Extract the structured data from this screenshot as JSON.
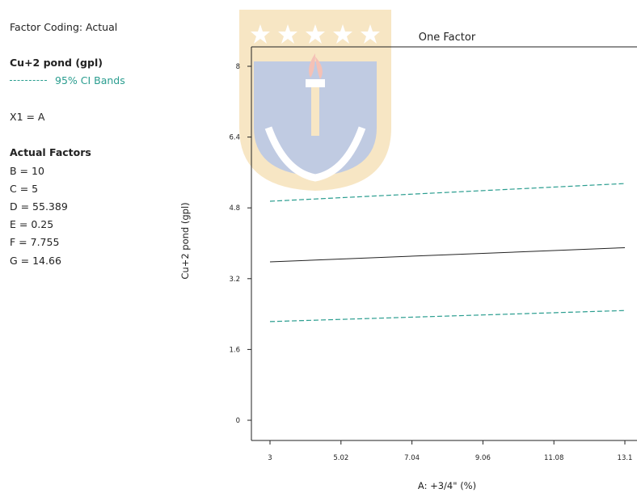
{
  "legend_panel": {
    "factor_coding": "Factor Coding: Actual",
    "response_name": "Cu+2 pond (gpl)",
    "ci_label": "95% CI Bands",
    "x1_label": "X1 = A",
    "actual_factors_heading": "Actual Factors",
    "factors": [
      "B = 10",
      "C = 5",
      "D = 55.389",
      "E = 0.25",
      "F = 7.755",
      "G = 14.66"
    ]
  },
  "colors": {
    "ci": "#2a9d8f",
    "line": "#222222",
    "watermark_gold": "#e8b24a",
    "watermark_blue": "#3f5fa8"
  },
  "chart_data": {
    "type": "line",
    "title": "One Factor",
    "xlabel": "A: +3/4\" (%)",
    "ylabel": "Cu+2 pond (gpl)",
    "xlim": [
      3,
      13.1
    ],
    "ylim": [
      0,
      8
    ],
    "xticks": [
      3,
      5.02,
      7.04,
      9.06,
      11.08,
      13.1
    ],
    "xtick_labels": [
      "3",
      "5.02",
      "7.04",
      "9.06",
      "11.08",
      "13.1"
    ],
    "yticks": [
      0,
      1.6,
      3.2,
      4.8,
      6.4,
      8
    ],
    "ytick_labels": [
      "0",
      "1.6",
      "3.2",
      "4.8",
      "6.4",
      "8"
    ],
    "series": [
      {
        "role": "prediction",
        "x": [
          3,
          13.1
        ],
        "y": [
          3.58,
          3.9
        ],
        "style": "solid"
      },
      {
        "role": "ci-upper",
        "x": [
          3,
          13.1
        ],
        "y": [
          4.95,
          5.35
        ],
        "style": "dashed"
      },
      {
        "role": "ci-lower",
        "x": [
          3,
          13.1
        ],
        "y": [
          2.23,
          2.48
        ],
        "style": "dashed"
      }
    ],
    "grid": false
  }
}
